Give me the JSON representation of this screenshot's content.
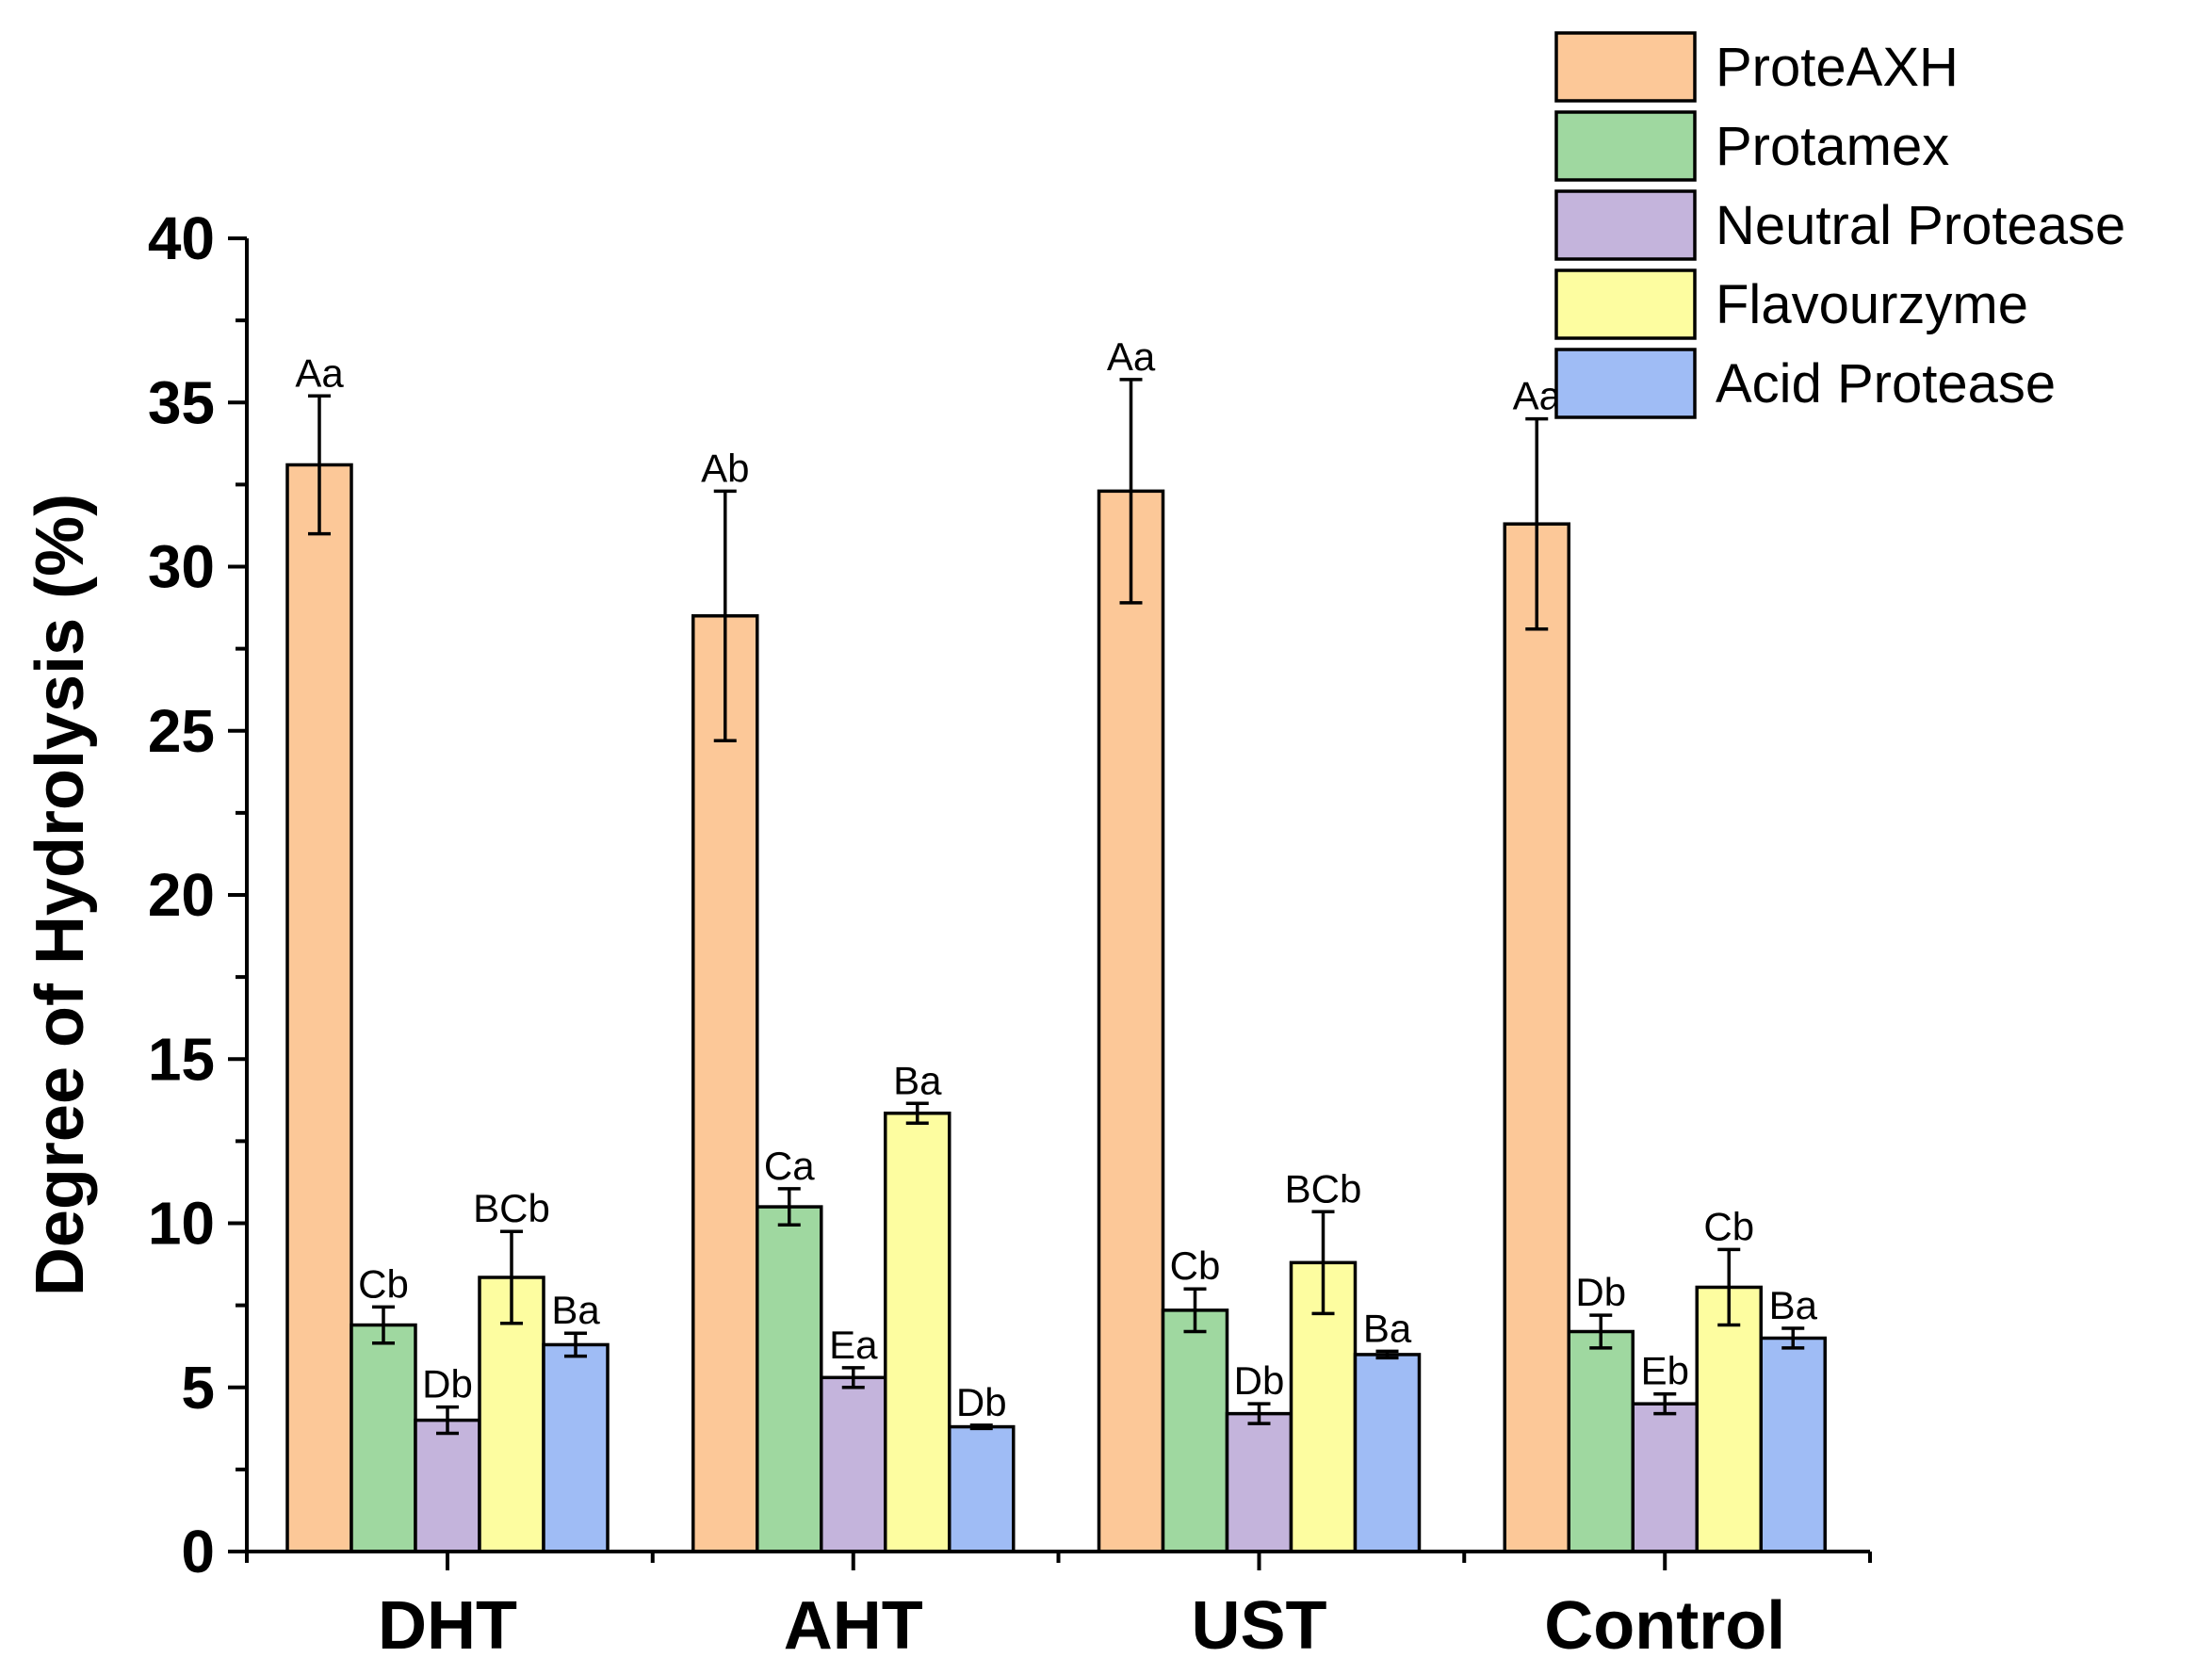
{
  "chart_data": {
    "type": "bar",
    "title": "",
    "xlabel": "",
    "ylabel": "Degree of Hydrolysis (%)",
    "ylim": [
      0,
      40
    ],
    "yticks": [
      0,
      5,
      10,
      15,
      20,
      25,
      30,
      35,
      40
    ],
    "categories": [
      "DHT",
      "AHT",
      "UST",
      "Control"
    ],
    "legend_position": "top-right",
    "series": [
      {
        "name": "ProteAXH",
        "color": "#fcc898",
        "values": [
          33.1,
          28.5,
          32.3,
          31.3
        ],
        "errors": [
          2.1,
          3.8,
          3.4,
          3.2
        ],
        "labels": [
          "Aa",
          "Ab",
          "Aa",
          "Aa"
        ]
      },
      {
        "name": "Protamex",
        "color": "#9fd8a0",
        "values": [
          6.9,
          10.5,
          7.35,
          6.7
        ],
        "errors": [
          0.55,
          0.55,
          0.65,
          0.5
        ],
        "labels": [
          "Cb",
          "Ca",
          "Cb",
          "Db"
        ]
      },
      {
        "name": "Neutral Protease",
        "color": "#c4b4dc",
        "values": [
          4.0,
          5.3,
          4.2,
          4.5
        ],
        "errors": [
          0.4,
          0.3,
          0.3,
          0.3
        ],
        "labels": [
          "Db",
          "Ea",
          "Db",
          "Eb"
        ]
      },
      {
        "name": "Flavourzyme",
        "color": "#fdfda0",
        "values": [
          8.35,
          13.35,
          8.8,
          8.05
        ],
        "errors": [
          1.4,
          0.3,
          1.55,
          1.15
        ],
        "labels": [
          "BCb",
          "Ba",
          "BCb",
          "Cb"
        ]
      },
      {
        "name": "Acid Protease",
        "color": "#9fbcf5",
        "values": [
          6.3,
          3.8,
          6.0,
          6.5
        ],
        "errors": [
          0.35,
          0.05,
          0.1,
          0.3
        ],
        "labels": [
          "Ba",
          "Db",
          "Ba",
          "Ba"
        ]
      }
    ]
  }
}
